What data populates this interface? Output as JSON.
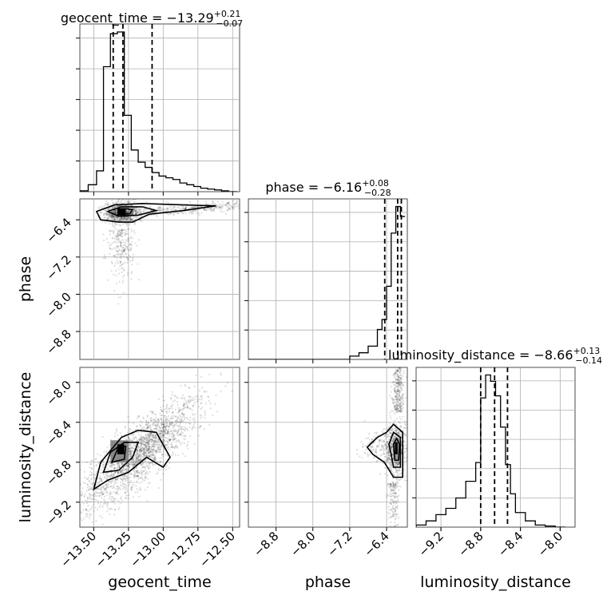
{
  "chart_data": {
    "type": "corner",
    "parameters": [
      "geocent_time",
      "phase",
      "luminosity_distance"
    ],
    "titles": [
      {
        "param": "geocent_time",
        "text": "geocent_time = −13.29",
        "plus": "+0.21",
        "minus": "−0.07"
      },
      {
        "param": "phase",
        "text": "phase = −6.16",
        "plus": "+0.08",
        "minus": "−0.28"
      },
      {
        "param": "luminosity_distance",
        "text": "luminosity_distance = −8.66",
        "plus": "+0.13",
        "minus": "−0.14"
      }
    ],
    "axes": {
      "geocent_time": {
        "range": [
          -13.6,
          -12.45
        ],
        "ticks": [
          -13.5,
          -13.25,
          -13.0,
          -12.75,
          -12.5
        ],
        "tick_labels": [
          "−13.50",
          "−13.25",
          "−13.00",
          "−12.75",
          "−12.50"
        ]
      },
      "phase": {
        "range": [
          -9.4,
          -5.95
        ],
        "ticks": [
          -8.8,
          -8.0,
          -7.2,
          -6.4
        ],
        "tick_labels": [
          "−8.8",
          "−8.0",
          "−7.2",
          "−6.4"
        ]
      },
      "luminosity_distance": {
        "range": [
          -9.45,
          -7.85
        ],
        "ticks": [
          -9.2,
          -8.8,
          -8.4,
          -8.0
        ],
        "tick_labels": [
          "−9.2",
          "−8.8",
          "−8.4",
          "−8.0"
        ]
      }
    },
    "histograms": [
      {
        "param": "geocent_time",
        "edges": [
          -13.6,
          -13.54,
          -13.48,
          -13.43,
          -13.38,
          -13.33,
          -13.28,
          -13.23,
          -13.18,
          -13.13,
          -13.08,
          -13.03,
          -12.98,
          -12.93,
          -12.88,
          -12.83,
          -12.78,
          -12.73,
          -12.68,
          -12.63,
          -12.58,
          -12.53,
          -12.47
        ],
        "counts": [
          0.5,
          4,
          12,
          72,
          91,
          92,
          44,
          24,
          17,
          14,
          11,
          9,
          8,
          7,
          5,
          4,
          3,
          2,
          1.5,
          1,
          0.5,
          0
        ],
        "quantiles": [
          -13.36,
          -13.29,
          -13.08
        ]
      },
      {
        "param": "phase",
        "edges": [
          -9.4,
          -9.2,
          -9.0,
          -8.8,
          -8.6,
          -8.4,
          -8.2,
          -8.0,
          -7.8,
          -7.6,
          -7.4,
          -7.2,
          -7.0,
          -6.8,
          -6.6,
          -6.5,
          -6.4,
          -6.3,
          -6.2,
          -6.1,
          -6.0
        ],
        "counts": [
          0,
          0,
          0,
          0,
          0,
          0,
          0,
          0,
          0,
          0,
          0,
          1,
          2,
          4,
          9,
          12,
          22,
          38,
          46,
          43
        ],
        "quantiles": [
          -6.44,
          -6.16,
          -6.08
        ]
      },
      {
        "param": "luminosity_distance",
        "edges": [
          -9.45,
          -9.35,
          -9.25,
          -9.15,
          -9.05,
          -8.95,
          -8.85,
          -8.8,
          -8.75,
          -8.7,
          -8.65,
          -8.6,
          -8.55,
          -8.5,
          -8.45,
          -8.35,
          -8.25,
          -8.15,
          -8.05,
          -7.95
        ],
        "counts": [
          1,
          3,
          6,
          9,
          14,
          22,
          31,
          62,
          73,
          70,
          63,
          48,
          30,
          16,
          7,
          3,
          1,
          0.5,
          0
        ],
        "quantiles": [
          -8.8,
          -8.66,
          -8.53
        ]
      }
    ],
    "scatter_2d": [
      {
        "x": "geocent_time",
        "y": "phase",
        "peak": [
          -13.29,
          -6.2
        ]
      },
      {
        "x": "geocent_time",
        "y": "luminosity_distance",
        "peak": [
          -13.3,
          -8.66
        ]
      },
      {
        "x": "phase",
        "y": "luminosity_distance",
        "peak": [
          -6.2,
          -8.66
        ]
      }
    ],
    "grid": true
  }
}
